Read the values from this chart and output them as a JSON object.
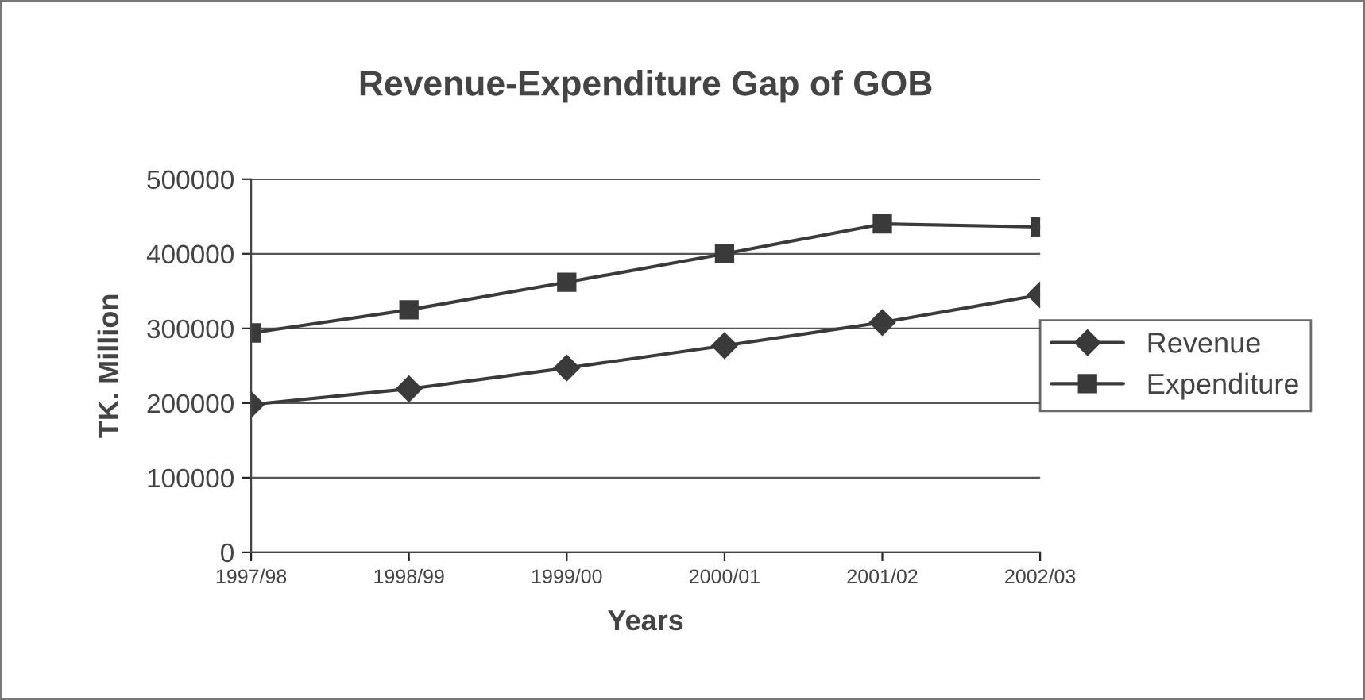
{
  "chart_data": {
    "type": "line",
    "title": "Revenue-Expenditure Gap of GOB",
    "xlabel": "Years",
    "ylabel": "TK. Million",
    "categories": [
      "1997/98",
      "1998/99",
      "1999/00",
      "2000/01",
      "2001/02",
      "2002/03"
    ],
    "series": [
      {
        "name": "Revenue",
        "color": "#3a3a3a",
        "marker": "diamond",
        "values": [
          198000,
          219000,
          247000,
          277000,
          308000,
          345000
        ]
      },
      {
        "name": "Expenditure",
        "color": "#3a3a3a",
        "marker": "square",
        "values": [
          294000,
          325000,
          362000,
          400000,
          440000,
          436000
        ]
      }
    ],
    "ylim": [
      0,
      500000
    ],
    "yticks": [
      0,
      100000,
      200000,
      300000,
      400000,
      500000
    ],
    "grid": "y",
    "legend": "right",
    "line_style": "solid"
  }
}
